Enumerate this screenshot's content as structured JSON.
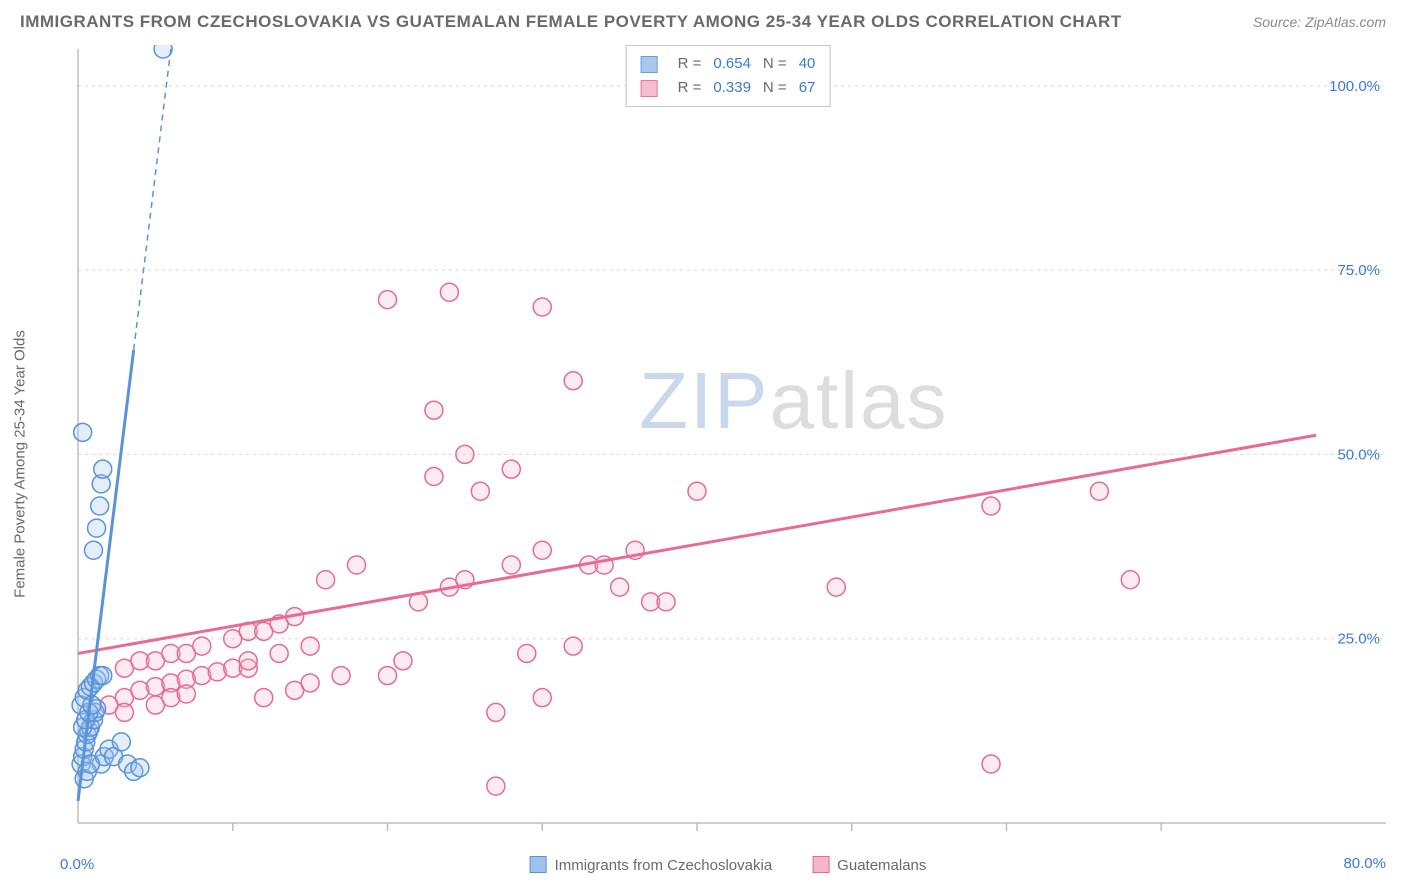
{
  "header": {
    "title": "IMMIGRANTS FROM CZECHOSLOVAKIA VS GUATEMALAN FEMALE POVERTY AMONG 25-34 YEAR OLDS CORRELATION CHART",
    "source": "Source: ZipAtlas.com"
  },
  "chart": {
    "type": "scatter",
    "y_label": "Female Poverty Among 25-34 Year Olds",
    "x_min_label": "0.0%",
    "x_max_label": "80.0%",
    "xlim": [
      0,
      80
    ],
    "ylim": [
      0,
      105
    ],
    "y_ticks": [
      {
        "v": 25,
        "label": "25.0%"
      },
      {
        "v": 50,
        "label": "50.0%"
      },
      {
        "v": 75,
        "label": "75.0%"
      },
      {
        "v": 100,
        "label": "100.0%"
      }
    ],
    "x_ticks": [
      10,
      20,
      30,
      40,
      50,
      60,
      70
    ],
    "grid_color": "#d8d8d8",
    "axis_color": "#bfbfbf",
    "background_color": "#ffffff",
    "y_tick_label_color": "#3a7bd5",
    "marker_radius": 9,
    "marker_stroke_width": 1.5,
    "marker_fill_opacity": 0.28,
    "watermark_parts": {
      "z": "Z",
      "i": "I",
      "p": "P",
      "atlas": "atlas"
    },
    "series": [
      {
        "name": "Immigrants from Czechoslovakia",
        "label": "Immigrants from Czechoslovakia",
        "color_stroke": "#5a93d8",
        "color_fill": "#9fc2ec",
        "trend_dash_color": "#5a93d8",
        "trend": {
          "slope": 17.0,
          "intercept": 3.0,
          "solid_xmax": 3.6
        },
        "R": "0.654",
        "N": "40",
        "points": [
          [
            0.2,
            8
          ],
          [
            0.3,
            9
          ],
          [
            0.4,
            10
          ],
          [
            0.5,
            11
          ],
          [
            0.6,
            12
          ],
          [
            0.7,
            12.5
          ],
          [
            0.8,
            13
          ],
          [
            1.0,
            14
          ],
          [
            1.1,
            15
          ],
          [
            1.2,
            15.5
          ],
          [
            0.2,
            16
          ],
          [
            0.4,
            17
          ],
          [
            0.6,
            18
          ],
          [
            0.8,
            18.5
          ],
          [
            1.0,
            19
          ],
          [
            1.2,
            19.5
          ],
          [
            1.4,
            20
          ],
          [
            1.6,
            20
          ],
          [
            0.3,
            13
          ],
          [
            0.5,
            14
          ],
          [
            0.7,
            15
          ],
          [
            0.9,
            16
          ],
          [
            1.5,
            8
          ],
          [
            1.7,
            9
          ],
          [
            2.0,
            10
          ],
          [
            2.3,
            9
          ],
          [
            1.0,
            37
          ],
          [
            1.2,
            40
          ],
          [
            1.4,
            43
          ],
          [
            1.5,
            46
          ],
          [
            1.6,
            48
          ],
          [
            0.3,
            53
          ],
          [
            3.2,
            8
          ],
          [
            3.6,
            7
          ],
          [
            4.0,
            7.5
          ],
          [
            2.8,
            11
          ],
          [
            0.4,
            6
          ],
          [
            0.6,
            7
          ],
          [
            0.8,
            8
          ],
          [
            5.5,
            105
          ]
        ]
      },
      {
        "name": "Guatemalans",
        "label": "Guatemalans",
        "color_stroke": "#e76b94",
        "color_fill": "#f5b6ca",
        "trend_dash_color": "#e76b94",
        "trend": {
          "slope": 0.37,
          "intercept": 23.0,
          "solid_xmax": 80
        },
        "R": "0.339",
        "N": "67",
        "points": [
          [
            2,
            16
          ],
          [
            3,
            17
          ],
          [
            4,
            18
          ],
          [
            5,
            18.5
          ],
          [
            6,
            19
          ],
          [
            7,
            19.5
          ],
          [
            8,
            20
          ],
          [
            9,
            20.5
          ],
          [
            10,
            21
          ],
          [
            11,
            21
          ],
          [
            3,
            21
          ],
          [
            4,
            22
          ],
          [
            5,
            22
          ],
          [
            6,
            23
          ],
          [
            7,
            23
          ],
          [
            8,
            24
          ],
          [
            10,
            25
          ],
          [
            11,
            26
          ],
          [
            12,
            26
          ],
          [
            13,
            27
          ],
          [
            5,
            16
          ],
          [
            6,
            17
          ],
          [
            7,
            17.5
          ],
          [
            12,
            17
          ],
          [
            14,
            18
          ],
          [
            15,
            19
          ],
          [
            17,
            20
          ],
          [
            11,
            22
          ],
          [
            13,
            23
          ],
          [
            15,
            24
          ],
          [
            14,
            28
          ],
          [
            16,
            33
          ],
          [
            18,
            35
          ],
          [
            20,
            20
          ],
          [
            21,
            22
          ],
          [
            22,
            30
          ],
          [
            23,
            47
          ],
          [
            23,
            56
          ],
          [
            24,
            32
          ],
          [
            25,
            33
          ],
          [
            25,
            50
          ],
          [
            26,
            45
          ],
          [
            27,
            15
          ],
          [
            27,
            5
          ],
          [
            28,
            35
          ],
          [
            29,
            23
          ],
          [
            30,
            37
          ],
          [
            30,
            17
          ],
          [
            32,
            24
          ],
          [
            33,
            35
          ],
          [
            34,
            35
          ],
          [
            35,
            32
          ],
          [
            36,
            37
          ],
          [
            37,
            30
          ],
          [
            38,
            30
          ],
          [
            20,
            71
          ],
          [
            24,
            72
          ],
          [
            28,
            48
          ],
          [
            30,
            70
          ],
          [
            32,
            60
          ],
          [
            40,
            45
          ],
          [
            49,
            32
          ],
          [
            59,
            8
          ],
          [
            59,
            43
          ],
          [
            66,
            45
          ],
          [
            68,
            33
          ],
          [
            3,
            15
          ]
        ]
      }
    ],
    "top_legend": {
      "rows": [
        {
          "swatch_series": 0,
          "pairs": [
            [
              "R =",
              "0.654"
            ],
            [
              "N =",
              "40"
            ]
          ]
        },
        {
          "swatch_series": 1,
          "pairs": [
            [
              "R =",
              "0.339"
            ],
            [
              "N =",
              "67"
            ]
          ]
        }
      ]
    }
  }
}
